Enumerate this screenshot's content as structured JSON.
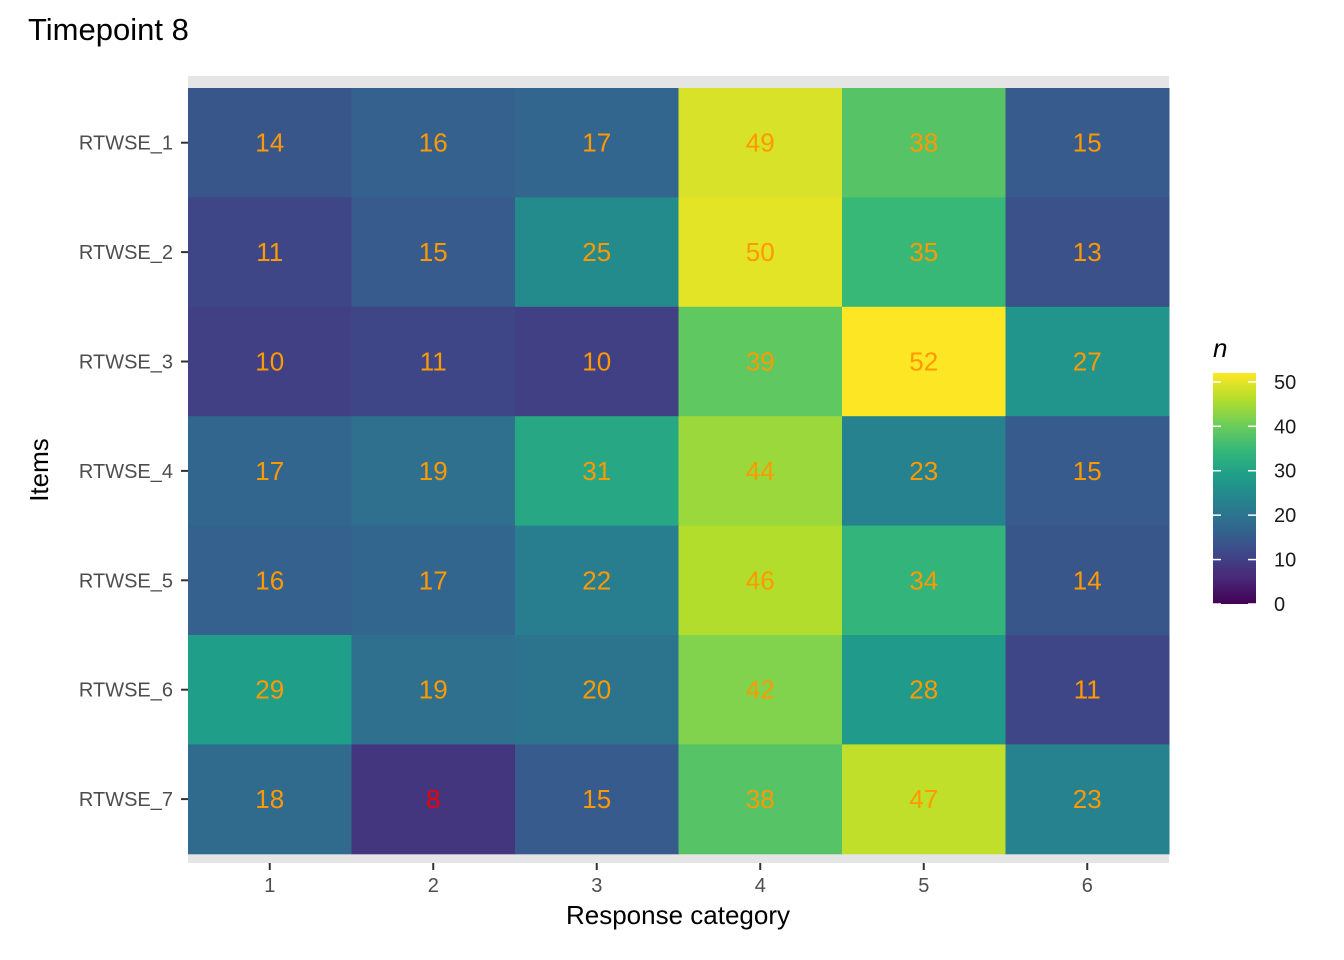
{
  "chart_data": {
    "type": "heatmap",
    "title": "Timepoint 8",
    "xlabel": "Response category",
    "ylabel": "Items",
    "x_categories": [
      "1",
      "2",
      "3",
      "4",
      "5",
      "6"
    ],
    "y_categories": [
      "RTWSE_1",
      "RTWSE_2",
      "RTWSE_3",
      "RTWSE_4",
      "RTWSE_5",
      "RTWSE_6",
      "RTWSE_7"
    ],
    "values": [
      [
        14,
        16,
        17,
        49,
        38,
        15
      ],
      [
        11,
        15,
        25,
        50,
        35,
        13
      ],
      [
        10,
        11,
        10,
        39,
        52,
        27
      ],
      [
        17,
        19,
        31,
        44,
        23,
        15
      ],
      [
        16,
        17,
        22,
        46,
        34,
        14
      ],
      [
        29,
        19,
        20,
        42,
        28,
        11
      ],
      [
        18,
        8,
        15,
        38,
        47,
        23
      ]
    ],
    "label_colors": {
      "default": "#ff9900",
      "low": "#ee0000",
      "low_threshold": 10
    },
    "colorscale": "viridis",
    "color_range": [
      0,
      52
    ],
    "legend": {
      "title": "n",
      "ticks": [
        0,
        10,
        20,
        30,
        40,
        50
      ],
      "placement": "right"
    },
    "panel_background": "#e5e5e5",
    "grid": true
  }
}
